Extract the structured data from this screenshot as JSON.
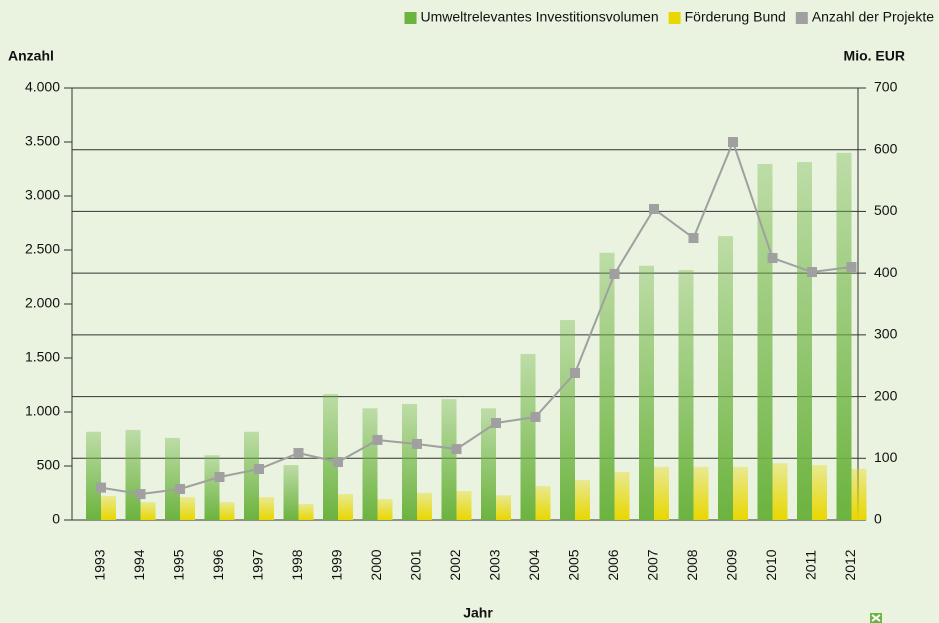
{
  "chart_data": {
    "type": "bar",
    "categories": [
      "1993",
      "1994",
      "1995",
      "1996",
      "1997",
      "1998",
      "1999",
      "2000",
      "2001",
      "2002",
      "2003",
      "2004",
      "2005",
      "2006",
      "2007",
      "2008",
      "2009",
      "2010",
      "2011",
      "2012"
    ],
    "series": [
      {
        "name": "Umweltrelevantes Investitionsvolumen",
        "color": "#6cb33f",
        "type": "bar",
        "axis": "y2",
        "values": [
          143,
          146,
          133,
          105,
          143,
          89,
          204,
          181,
          188,
          196,
          181,
          269,
          324,
          433,
          412,
          405,
          460,
          577,
          580,
          595
        ]
      },
      {
        "name": "Förderung Bund",
        "color": "#e8d700",
        "type": "bar",
        "axis": "y2",
        "values": [
          39,
          29,
          37,
          29,
          37,
          26,
          42,
          34,
          44,
          47,
          40,
          55,
          65,
          78,
          86,
          86,
          86,
          92,
          89,
          83
        ]
      },
      {
        "name": "Anzahl der Projekte",
        "color": "#a0a0a0",
        "type": "line",
        "axis": "y",
        "values": [
          300,
          240,
          287,
          398,
          472,
          620,
          537,
          741,
          704,
          657,
          898,
          954,
          1361,
          2278,
          2880,
          2611,
          3500,
          2426,
          2296,
          2343
        ]
      }
    ],
    "ylabel": "Anzahl",
    "y2label": "Mio. EUR",
    "xlabel": "Jahr",
    "ylim": [
      0,
      4000
    ],
    "yticks": [
      0,
      500,
      {
        "value": 1000,
        "label": "1.000"
      },
      {
        "value": 1500,
        "label": "1.500"
      },
      {
        "value": 2000,
        "label": "2.000"
      },
      {
        "value": 2500,
        "label": "2.500"
      },
      {
        "value": 3000,
        "label": "3.000"
      },
      {
        "value": 3500,
        "label": "3.500"
      },
      {
        "value": 4000,
        "label": "4.000"
      }
    ],
    "y2lim": [
      0,
      700
    ],
    "y2ticks": [
      0,
      100,
      200,
      300,
      400,
      500,
      600,
      700
    ],
    "grid": true,
    "legend": "top-right"
  }
}
